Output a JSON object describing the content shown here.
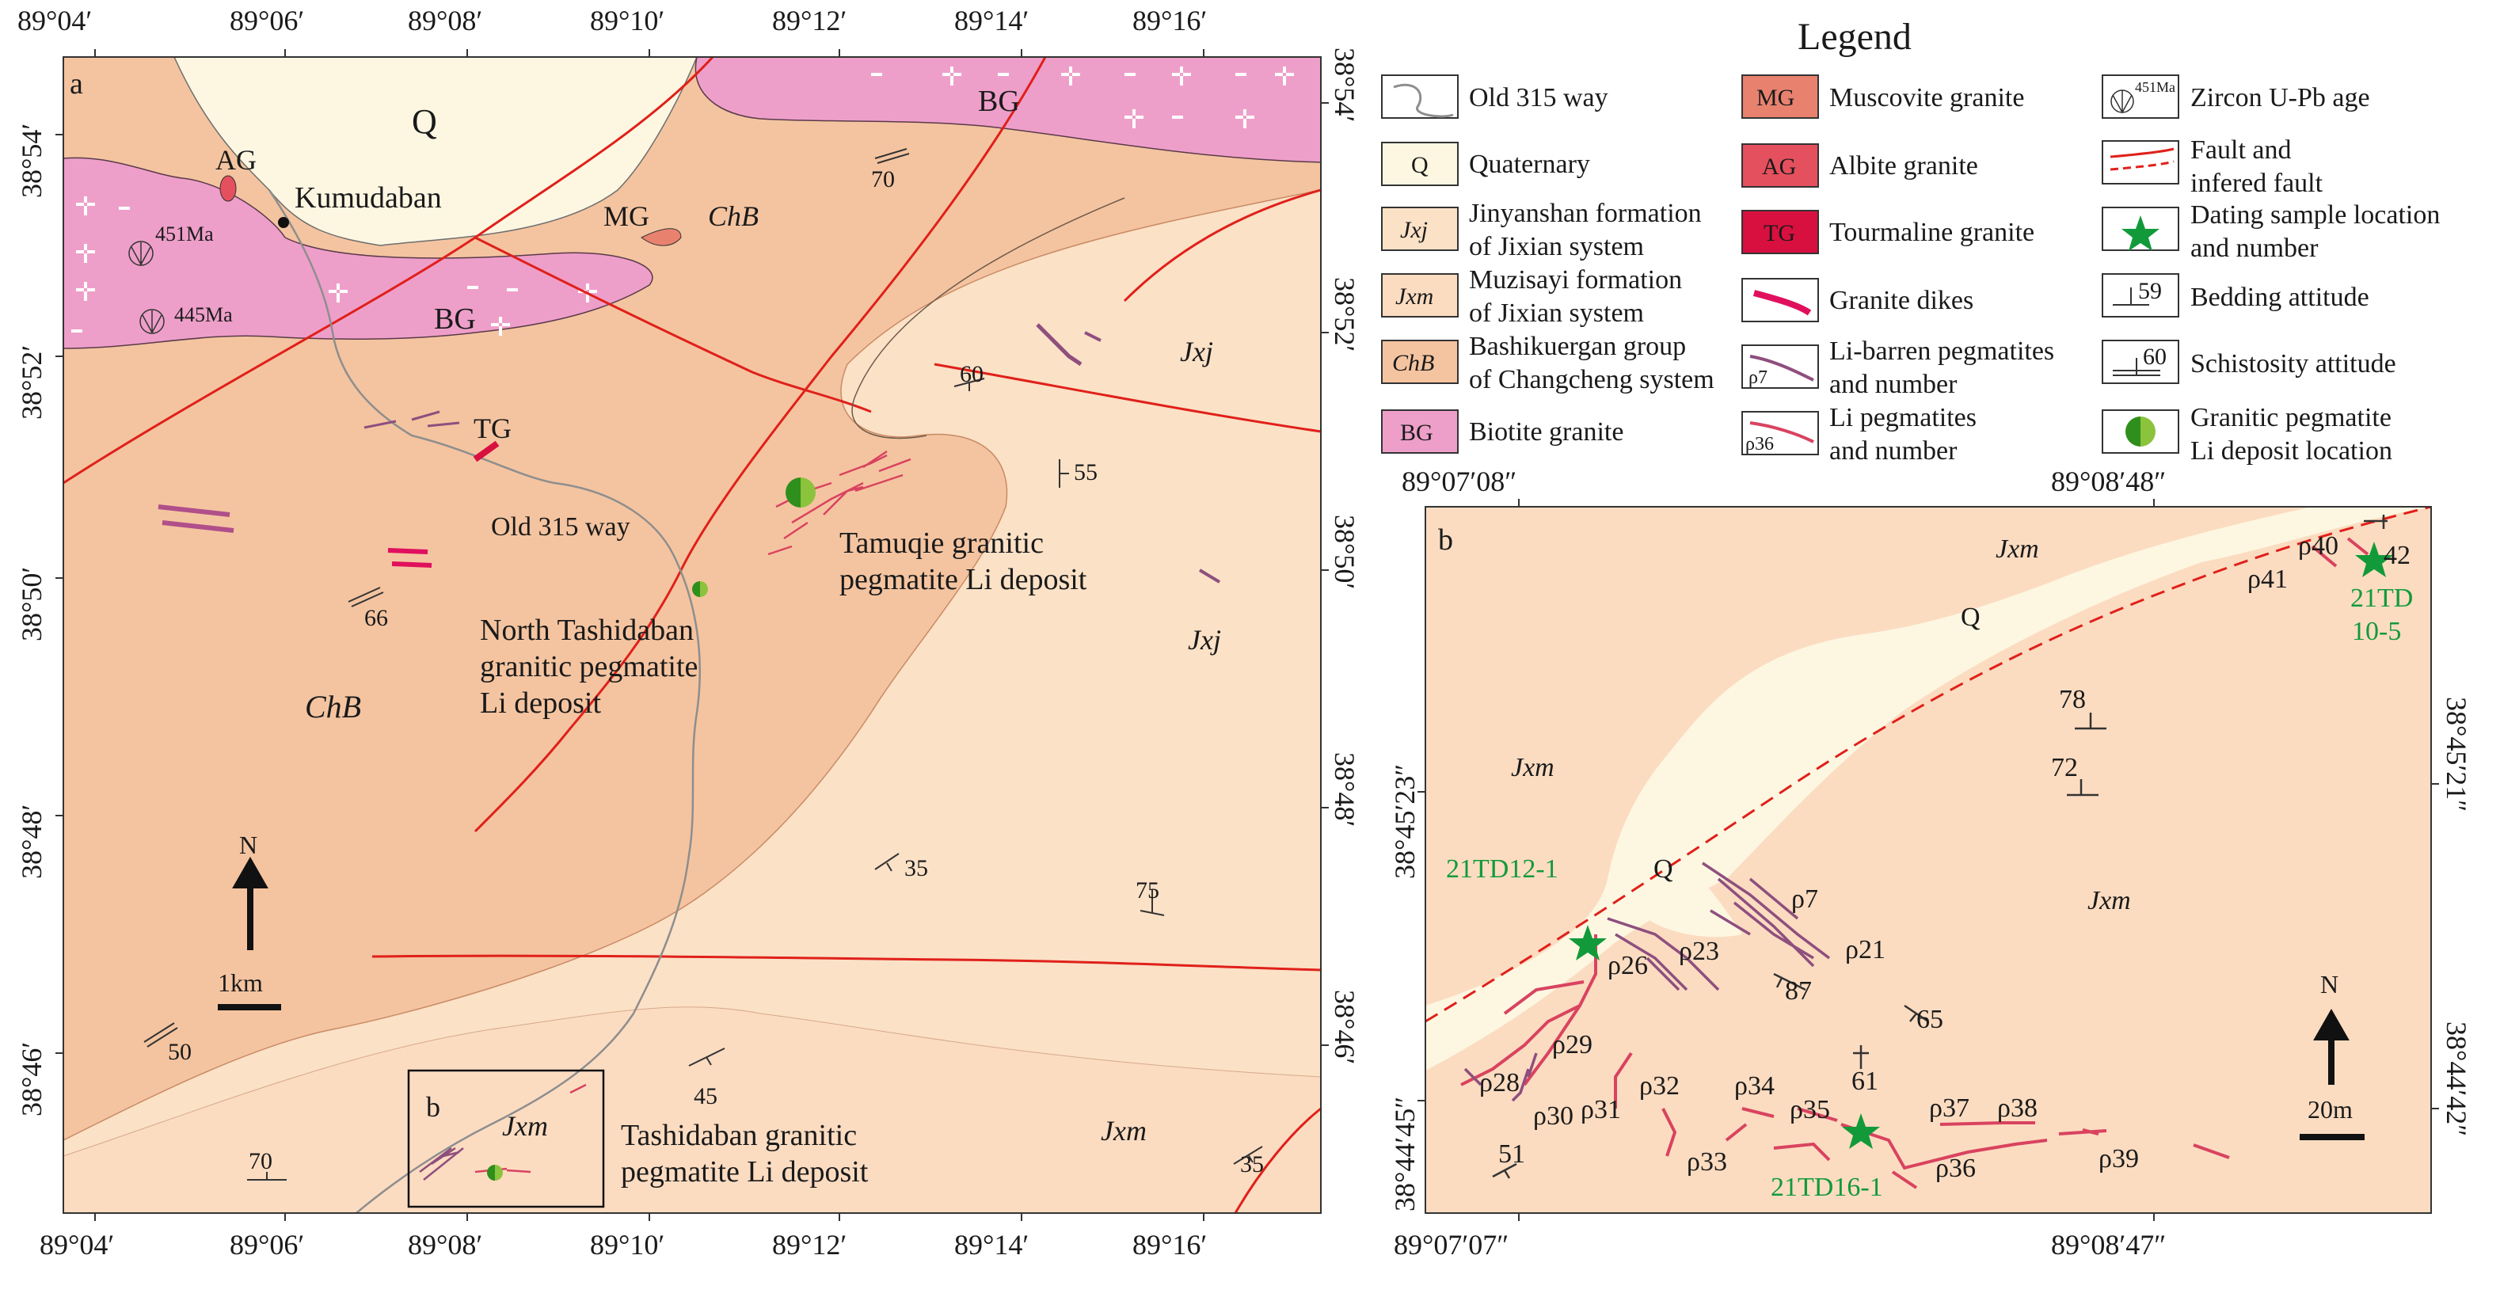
{
  "panel_a": {
    "letter": "a",
    "top_ticks": [
      "89°04′",
      "89°06′",
      "89°08′",
      "89°10′",
      "89°12′",
      "89°14′",
      "89°16′"
    ],
    "bottom_ticks": [
      "89°04′",
      "89°06′",
      "89°08′",
      "89°10′",
      "89°12′",
      "89°14′",
      "89°16′"
    ],
    "left_ticks": [
      "38°54′",
      "38°52′",
      "38°50′",
      "38°48′",
      "38°46′"
    ],
    "right_ticks": [
      "38°54′",
      "38°52′",
      "38°50′",
      "38°48′",
      "38°46′"
    ],
    "units": {
      "Q": "Q",
      "ChB_1": "ChB",
      "ChB_2": "ChB",
      "BG_1": "BG",
      "BG_2": "BG",
      "AG": "AG",
      "MG": "MG",
      "TG": "TG",
      "Jxj_1": "Jxj",
      "Jxj_2": "Jxj",
      "Jxm_1": "Jxm",
      "Jxm_2": "Jxm",
      "b_box": "b"
    },
    "places": {
      "kumudaban": "Kumudaban",
      "old315": "Old 315 way",
      "tamuqie_1": "Tamuqie granitic",
      "tamuqie_2": "pegmatite Li deposit",
      "north_1": "North Tashidaban",
      "north_2": "granitic pegmatite",
      "north_3": "Li deposit",
      "tashi_1": "Tashidaban granitic",
      "tashi_2": "pegmatite Li deposit"
    },
    "ages": [
      "451Ma",
      "445Ma"
    ],
    "attitudes": [
      "70",
      "60",
      "55",
      "66",
      "35",
      "75",
      "50",
      "45",
      "35",
      "70"
    ],
    "north": "N",
    "scale": "1km"
  },
  "legend": {
    "title": "Legend",
    "items": [
      {
        "key": "Old 315 way"
      },
      {
        "sym": "Q",
        "key": "Quaternary",
        "color": "#fdf7e2"
      },
      {
        "sym": "Jxj",
        "key1": "Jinyanshan formation",
        "key2": "of Jixian system",
        "color": "#fbe1c6"
      },
      {
        "sym": "Jxm",
        "key1": "Muzisayi formation",
        "key2": "of Jixian system",
        "color": "#fcdcc1"
      },
      {
        "sym": "ChB",
        "key1": "Bashikuergan group",
        "key2": "of Changcheng system",
        "color": "#f4c4a0"
      },
      {
        "sym": "BG",
        "key": "Biotite granite",
        "color": "#ee9fc9"
      },
      {
        "sym": "MG",
        "key": "Muscovite granite",
        "color": "#e8826f"
      },
      {
        "sym": "AG",
        "key": "Albite granite",
        "color": "#e5505e"
      },
      {
        "sym": "TG",
        "key": "Tourmaline granite",
        "color": "#d8103f"
      },
      {
        "key": "Granite dikes"
      },
      {
        "sym": "ρ7",
        "key1": "Li-barren pegmatites",
        "key2": "and number"
      },
      {
        "sym": "ρ36",
        "key1": "Li pegmatites",
        "key2": "and number"
      },
      {
        "sym": "451Ma",
        "key": "Zircon U-Pb age"
      },
      {
        "key1": "Fault and",
        "key2": "infered fault"
      },
      {
        "key1": "Dating sample location",
        "key2": "and number"
      },
      {
        "sym": "59",
        "key": "Bedding attitude"
      },
      {
        "sym": "60",
        "key": "Schistosity attitude"
      },
      {
        "key1": "Granitic pegmatite",
        "key2": "Li deposit location"
      }
    ]
  },
  "panel_b": {
    "letter": "b",
    "top_ticks": [
      "89°07′08″",
      "89°08′48″"
    ],
    "bottom_ticks": [
      "89°07′07″",
      "89°08′47″"
    ],
    "left_ticks": [
      "38°45′23″",
      "38°44′45″"
    ],
    "right_ticks": [
      "38°45′21″",
      "38°44′42″"
    ],
    "units": {
      "Jxm_1": "Jxm",
      "Jxm_2": "Jxm",
      "Jxm_3": "Jxm",
      "Q_1": "Q",
      "Q_2": "Q"
    },
    "pegmatites": [
      "ρ40",
      "ρ41",
      "ρ7",
      "ρ21",
      "ρ23",
      "ρ26",
      "ρ29",
      "ρ28",
      "ρ30",
      "ρ31",
      "ρ32",
      "ρ34",
      "ρ35",
      "ρ33",
      "ρ37",
      "ρ38",
      "ρ36",
      "ρ39"
    ],
    "attitudes": [
      "42",
      "78",
      "72",
      "87",
      "65",
      "61",
      "51"
    ],
    "samples": [
      {
        "line1": "21TD",
        "line2": "10-5"
      },
      {
        "line1": "21TD12-1"
      },
      {
        "line1": "21TD16-1"
      }
    ],
    "north": "N",
    "scale": "20m"
  },
  "colors": {
    "quaternary": "#fdf7e2",
    "jxj": "#fbe1c6",
    "jxm": "#fcdcc1",
    "chb": "#f4c4a0",
    "bg": "#ee9fc9",
    "mg": "#e8826f",
    "ag": "#e5505e",
    "tg": "#d8103f",
    "fault": "#e0201a",
    "li_peg": "#d9435f",
    "barren_peg": "#8e4f7e",
    "star": "#129a3a",
    "road": "#8e8e8e"
  }
}
